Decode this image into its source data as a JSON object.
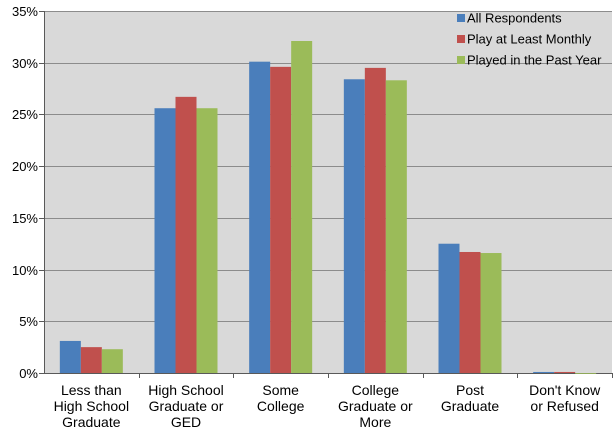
{
  "chart_data": {
    "type": "bar",
    "title": "",
    "xlabel": "",
    "ylabel": "",
    "ylim": [
      0,
      0.35
    ],
    "y_tick_step": 0.05,
    "y_tick_labels": [
      "0%",
      "5%",
      "10%",
      "15%",
      "20%",
      "25%",
      "30%",
      "35%"
    ],
    "grid": true,
    "legend_position": "top-right",
    "plot_background": "#d9d9d9",
    "categories": [
      [
        "Less than",
        "High School",
        "Graduate"
      ],
      [
        "High School",
        "Graduate or",
        "GED"
      ],
      [
        "Some",
        "College"
      ],
      [
        "College",
        "Graduate or",
        "More"
      ],
      [
        "Post",
        "Graduate"
      ],
      [
        "Don't Know",
        "or Refused"
      ]
    ],
    "series": [
      {
        "name": "All Respondents",
        "color": "#4a7ebb",
        "values": [
          0.031,
          0.256,
          0.301,
          0.284,
          0.125,
          0.001
        ]
      },
      {
        "name": "Play at Least Monthly",
        "color": "#c0504d",
        "values": [
          0.025,
          0.267,
          0.296,
          0.295,
          0.117,
          0.001
        ]
      },
      {
        "name": "Played in the Past Year",
        "color": "#9bbb59",
        "values": [
          0.023,
          0.256,
          0.321,
          0.283,
          0.116,
          0.0
        ]
      }
    ]
  }
}
